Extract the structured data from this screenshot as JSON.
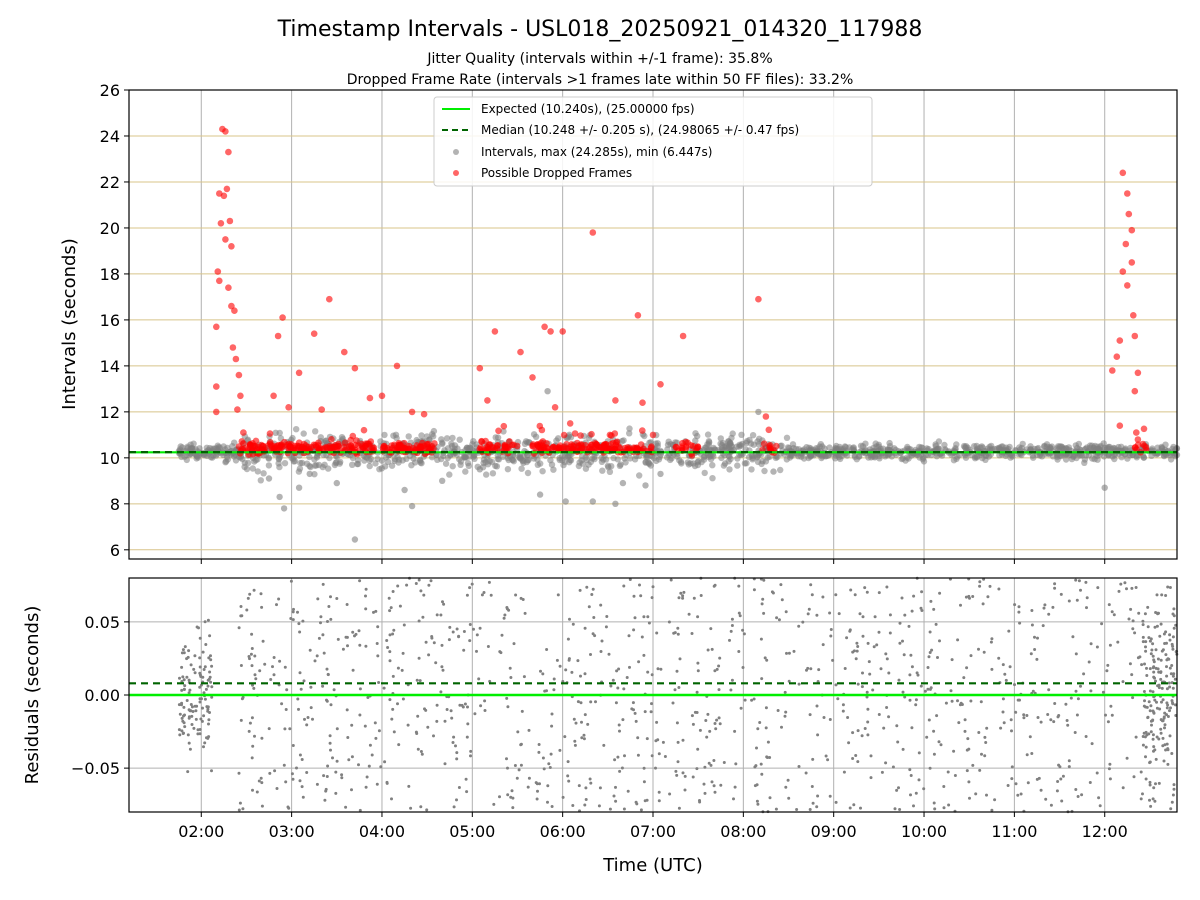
{
  "figure": {
    "title": "Timestamp Intervals - USL018_20250921_014320_117988",
    "subtitle1": "Jitter Quality (intervals within +/-1 frame): 35.8%",
    "subtitle2": "Dropped Frame Rate (intervals >1 frames late within 50 FF files): 33.2%"
  },
  "chart_data": [
    {
      "type": "scatter",
      "panel": "intervals",
      "ylabel": "Intervals (seconds)",
      "xlabel": "",
      "xlim": [
        "01:12",
        "12:48"
      ],
      "ylim": [
        5.6,
        26
      ],
      "yticks": [
        "6",
        "8",
        "10",
        "12",
        "14",
        "16",
        "18",
        "20",
        "22",
        "24",
        "26"
      ],
      "grid": true,
      "legend_position": "top-center",
      "series": [
        {
          "name": "Expected (10.240s), (25.00000 fps)",
          "kind": "hline",
          "y": 10.24,
          "color": "#00ee00",
          "style": "solid"
        },
        {
          "name": "Median (10.248 +/- 0.205 s), (24.98065 +/- 0.47 fps)",
          "kind": "hline",
          "y": 10.248,
          "color": "#006400",
          "style": "dashed"
        },
        {
          "name": "Intervals, max (24.285s), min (6.447s)",
          "kind": "scatter",
          "color": "#808080",
          "points": [
            [
              "02:45",
              9.1
            ],
            [
              "02:52",
              8.3
            ],
            [
              "02:55",
              7.8
            ],
            [
              "03:05",
              8.7
            ],
            [
              "03:12",
              9.3
            ],
            [
              "03:30",
              8.9
            ],
            [
              "03:42",
              6.45
            ],
            [
              "04:15",
              8.6
            ],
            [
              "04:20",
              7.9
            ],
            [
              "04:40",
              9.0
            ],
            [
              "05:05",
              9.5
            ],
            [
              "05:45",
              8.4
            ],
            [
              "05:50",
              12.9
            ],
            [
              "06:02",
              8.1
            ],
            [
              "06:20",
              8.1
            ],
            [
              "06:35",
              8.0
            ],
            [
              "06:40",
              8.9
            ],
            [
              "06:55",
              8.8
            ],
            [
              "07:05",
              9.3
            ],
            [
              "08:10",
              12.0
            ],
            [
              "08:20",
              9.4
            ],
            [
              "12:00",
              8.7
            ]
          ]
        },
        {
          "name": "Possible Dropped Frames",
          "kind": "scatter",
          "color": "#ff0000",
          "points": [
            [
              "02:14",
              24.3
            ],
            [
              "02:16",
              24.2
            ],
            [
              "02:18",
              23.3
            ],
            [
              "02:12",
              21.5
            ],
            [
              "02:15",
              21.4
            ],
            [
              "02:17",
              21.7
            ],
            [
              "02:19",
              20.3
            ],
            [
              "02:13",
              20.2
            ],
            [
              "02:16",
              19.5
            ],
            [
              "02:20",
              19.2
            ],
            [
              "02:11",
              18.1
            ],
            [
              "02:12",
              17.7
            ],
            [
              "02:18",
              17.4
            ],
            [
              "02:22",
              16.4
            ],
            [
              "02:20",
              16.6
            ],
            [
              "02:10",
              15.7
            ],
            [
              "02:21",
              14.8
            ],
            [
              "02:23",
              14.3
            ],
            [
              "02:25",
              13.6
            ],
            [
              "02:10",
              13.1
            ],
            [
              "02:26",
              12.7
            ],
            [
              "02:10",
              12.0
            ],
            [
              "02:24",
              12.1
            ],
            [
              "02:28",
              11.1
            ],
            [
              "02:48",
              12.7
            ],
            [
              "02:51",
              15.3
            ],
            [
              "02:54",
              16.1
            ],
            [
              "02:58",
              12.2
            ],
            [
              "03:05",
              13.7
            ],
            [
              "03:15",
              15.4
            ],
            [
              "03:20",
              12.1
            ],
            [
              "03:25",
              16.9
            ],
            [
              "03:35",
              14.6
            ],
            [
              "03:42",
              13.9
            ],
            [
              "03:52",
              12.6
            ],
            [
              "04:00",
              12.7
            ],
            [
              "04:10",
              14.0
            ],
            [
              "04:20",
              12.0
            ],
            [
              "04:28",
              11.9
            ],
            [
              "05:05",
              13.9
            ],
            [
              "05:10",
              12.5
            ],
            [
              "05:15",
              15.5
            ],
            [
              "05:32",
              14.6
            ],
            [
              "05:40",
              13.5
            ],
            [
              "05:48",
              15.7
            ],
            [
              "05:52",
              15.5
            ],
            [
              "05:55",
              12.2
            ],
            [
              "06:00",
              15.5
            ],
            [
              "06:05",
              11.5
            ],
            [
              "06:20",
              19.8
            ],
            [
              "06:35",
              12.5
            ],
            [
              "06:50",
              16.2
            ],
            [
              "06:53",
              12.4
            ],
            [
              "07:00",
              11.0
            ],
            [
              "07:05",
              13.2
            ],
            [
              "07:20",
              15.3
            ],
            [
              "08:10",
              16.9
            ],
            [
              "08:15",
              11.8
            ],
            [
              "12:05",
              13.8
            ],
            [
              "12:08",
              14.4
            ],
            [
              "12:10",
              15.1
            ],
            [
              "12:12",
              22.4
            ],
            [
              "12:15",
              21.5
            ],
            [
              "12:16",
              20.6
            ],
            [
              "12:18",
              19.9
            ],
            [
              "12:14",
              19.3
            ],
            [
              "12:12",
              18.1
            ],
            [
              "12:18",
              18.5
            ],
            [
              "12:15",
              17.5
            ],
            [
              "12:19",
              16.2
            ],
            [
              "12:20",
              15.3
            ],
            [
              "12:22",
              13.7
            ],
            [
              "12:20",
              12.9
            ],
            [
              "12:10",
              11.4
            ],
            [
              "12:21",
              11.1
            ],
            [
              "12:22",
              10.8
            ]
          ]
        }
      ]
    },
    {
      "type": "scatter",
      "panel": "residuals",
      "ylabel": "Residuals (seconds)",
      "xlabel": "Time (UTC)",
      "xlim": [
        "01:12",
        "12:48"
      ],
      "ylim": [
        -0.08,
        0.08
      ],
      "yticks": [
        "−0.05",
        "0.00",
        "0.05"
      ],
      "xticks": [
        "02:00",
        "03:00",
        "04:00",
        "05:00",
        "06:00",
        "07:00",
        "08:00",
        "09:00",
        "10:00",
        "11:00",
        "12:00"
      ],
      "grid": true,
      "series": [
        {
          "kind": "hline",
          "y": 0.0,
          "color": "#00ee00",
          "style": "solid"
        },
        {
          "kind": "hline",
          "y": 0.008,
          "color": "#006400",
          "style": "dashed"
        },
        {
          "kind": "scatter",
          "color": "#808080",
          "distribution": "dense residual cloud spanning 01:45–12:48, concentrated within ±0.08 s"
        }
      ]
    }
  ]
}
